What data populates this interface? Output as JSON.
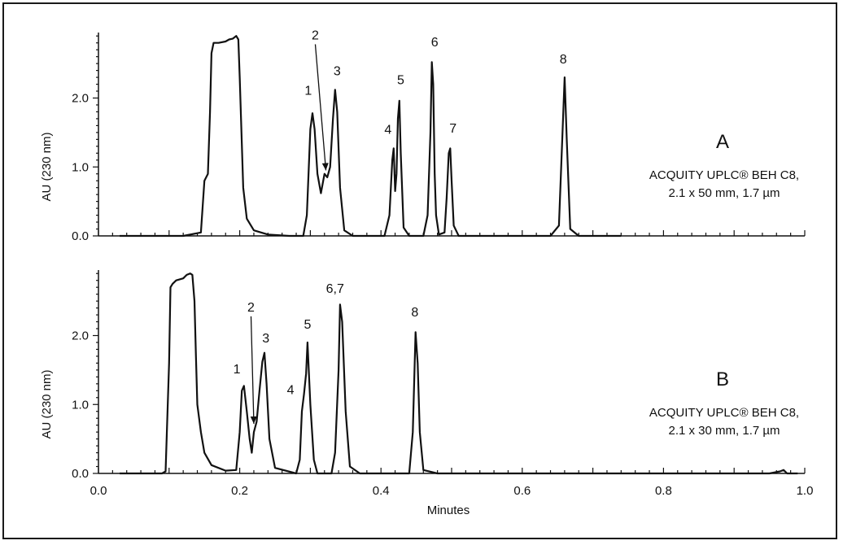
{
  "chart_data": [
    {
      "type": "line",
      "panel": "A",
      "ylabel": "AU (230 nm)",
      "xlim": [
        0.0,
        1.0
      ],
      "ylim": [
        0.0,
        2.95
      ],
      "y_ticks": [
        "0.0",
        "1.0",
        "2.0"
      ],
      "column": [
        "ACQUITY UPLC® BEH C8,",
        "2.1 x 50 mm, 1.7 µm"
      ],
      "series": [
        {
          "x": [
            0.03,
            0.12,
            0.145,
            0.15,
            0.155,
            0.158,
            0.16,
            0.163,
            0.17,
            0.18,
            0.185,
            0.19,
            0.195,
            0.198,
            0.2,
            0.205,
            0.21,
            0.22,
            0.24,
            0.27,
            0.29,
            0.295,
            0.3,
            0.303,
            0.306,
            0.31,
            0.315,
            0.32,
            0.324,
            0.328,
            0.332,
            0.335,
            0.338,
            0.342,
            0.348,
            0.36,
            0.405,
            0.412,
            0.416,
            0.418,
            0.42,
            0.422,
            0.424,
            0.426,
            0.428,
            0.432,
            0.44,
            0.46,
            0.466,
            0.47,
            0.472,
            0.474,
            0.476,
            0.478,
            0.482,
            0.49,
            0.493,
            0.496,
            0.498,
            0.5,
            0.503,
            0.51,
            0.64,
            0.652,
            0.657,
            0.66,
            0.663,
            0.668,
            0.68,
            0.74
          ],
          "values": [
            0.0,
            0.0,
            0.05,
            0.8,
            0.9,
            1.8,
            2.65,
            2.8,
            2.8,
            2.82,
            2.85,
            2.86,
            2.9,
            2.85,
            2.3,
            0.7,
            0.25,
            0.08,
            0.02,
            0.0,
            0.0,
            0.3,
            1.55,
            1.78,
            1.55,
            0.9,
            0.62,
            0.9,
            0.85,
            1.0,
            1.7,
            2.12,
            1.8,
            0.7,
            0.08,
            0.0,
            0.0,
            0.3,
            1.1,
            1.27,
            0.65,
            0.9,
            1.7,
            1.96,
            1.2,
            0.12,
            0.0,
            0.0,
            0.3,
            1.5,
            2.52,
            2.2,
            0.9,
            0.3,
            0.02,
            0.05,
            0.55,
            1.2,
            1.27,
            0.8,
            0.15,
            0.0,
            0.0,
            0.15,
            1.5,
            2.3,
            1.4,
            0.1,
            0.0,
            0.0
          ]
        }
      ],
      "annotations": [
        {
          "text": "1",
          "x": 0.297,
          "y": 2.05
        },
        {
          "text": "2",
          "x": 0.307,
          "y": 2.85,
          "arrow_to": [
            0.322,
            0.95
          ]
        },
        {
          "text": "3",
          "x": 0.338,
          "y": 2.33
        },
        {
          "text": "4",
          "x": 0.41,
          "y": 1.48
        },
        {
          "text": "5",
          "x": 0.428,
          "y": 2.2
        },
        {
          "text": "6",
          "x": 0.476,
          "y": 2.75
        },
        {
          "text": "7",
          "x": 0.502,
          "y": 1.5
        },
        {
          "text": "8",
          "x": 0.658,
          "y": 2.5
        }
      ]
    },
    {
      "type": "line",
      "panel": "B",
      "xlabel": "Minutes",
      "ylabel": "AU (230 nm)",
      "xlim": [
        0.0,
        1.0
      ],
      "ylim": [
        0.0,
        2.95
      ],
      "x_ticks": [
        "0.0",
        "0.2",
        "0.4",
        "0.6",
        "0.8",
        "1.0"
      ],
      "y_ticks": [
        "0.0",
        "1.0",
        "2.0"
      ],
      "column": [
        "ACQUITY UPLC® BEH C8,",
        "2.1 x 30 mm, 1.7 µm"
      ],
      "series": [
        {
          "x": [
            0.03,
            0.09,
            0.095,
            0.1,
            0.102,
            0.105,
            0.11,
            0.12,
            0.125,
            0.13,
            0.133,
            0.136,
            0.138,
            0.14,
            0.145,
            0.15,
            0.16,
            0.18,
            0.195,
            0.2,
            0.203,
            0.206,
            0.21,
            0.214,
            0.217,
            0.22,
            0.224,
            0.228,
            0.232,
            0.235,
            0.238,
            0.242,
            0.25,
            0.28,
            0.285,
            0.288,
            0.291,
            0.294,
            0.296,
            0.3,
            0.305,
            0.31,
            0.33,
            0.335,
            0.34,
            0.342,
            0.345,
            0.35,
            0.356,
            0.37,
            0.44,
            0.445,
            0.449,
            0.452,
            0.455,
            0.46,
            0.48,
            0.78,
            0.95,
            0.965,
            0.97,
            0.975,
            0.99
          ],
          "values": [
            0.0,
            0.0,
            0.03,
            1.6,
            2.7,
            2.75,
            2.8,
            2.83,
            2.88,
            2.9,
            2.88,
            2.5,
            1.7,
            1.0,
            0.6,
            0.3,
            0.12,
            0.04,
            0.05,
            0.6,
            1.2,
            1.27,
            0.9,
            0.5,
            0.3,
            0.6,
            0.75,
            1.2,
            1.62,
            1.75,
            1.3,
            0.5,
            0.08,
            0.0,
            0.2,
            0.9,
            1.15,
            1.45,
            1.9,
            1.0,
            0.2,
            0.0,
            0.0,
            0.3,
            1.5,
            2.45,
            2.2,
            0.9,
            0.1,
            0.0,
            0.0,
            0.6,
            2.05,
            1.6,
            0.6,
            0.05,
            0.0,
            0.0,
            0.0,
            0.03,
            0.05,
            0.0,
            0.0
          ]
        }
      ],
      "annotations": [
        {
          "text": "1",
          "x": 0.196,
          "y": 1.45
        },
        {
          "text": "2",
          "x": 0.216,
          "y": 2.35,
          "arrow_to": [
            0.22,
            0.72
          ]
        },
        {
          "text": "3",
          "x": 0.237,
          "y": 1.9
        },
        {
          "text": "4",
          "x": 0.272,
          "y": 1.15
        },
        {
          "text": "5",
          "x": 0.296,
          "y": 2.1
        },
        {
          "text": "6,7",
          "x": 0.335,
          "y": 2.62
        },
        {
          "text": "8",
          "x": 0.448,
          "y": 2.28
        }
      ]
    }
  ]
}
